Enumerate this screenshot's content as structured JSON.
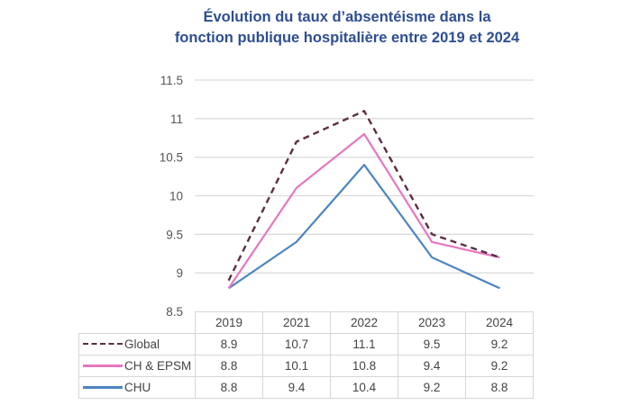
{
  "title_line1": "Évolution du taux d’absentéisme dans la",
  "title_line2": "fonction publique hospitalière entre 2019 et 2024",
  "chart_data": {
    "type": "line",
    "title": "Évolution du taux d’absentéisme dans la fonction publique hospitalière entre 2019 et 2024",
    "xlabel": "",
    "ylabel": "",
    "categories": [
      "2019",
      "2021",
      "2022",
      "2023",
      "2024"
    ],
    "ylim": [
      8.5,
      11.5
    ],
    "yticks": [
      "11.5",
      "11",
      "10.5",
      "10",
      "9.5",
      "9",
      "8.5"
    ],
    "ytick_values": [
      11.5,
      11,
      10.5,
      10,
      9.5,
      9,
      8.5
    ],
    "grid": true,
    "legend_placement": "bottom (data table)",
    "series": [
      {
        "name": "Global",
        "values": [
          8.9,
          10.7,
          11.1,
          9.5,
          9.2
        ],
        "color": "#5a2f45",
        "style": "dashed",
        "display": [
          "8.9",
          "10.7",
          "11.1",
          "9.5",
          "9.2"
        ]
      },
      {
        "name": "CH & EPSM",
        "values": [
          8.8,
          10.1,
          10.8,
          9.4,
          9.2
        ],
        "color": "#e677c0",
        "style": "solid",
        "display": [
          "8.8",
          "10.1",
          "10.8",
          "9.4",
          "9.2"
        ]
      },
      {
        "name": "CHU",
        "values": [
          8.8,
          9.4,
          10.4,
          9.2,
          8.8
        ],
        "color": "#4c86c2",
        "style": "solid",
        "display": [
          "8.8",
          "9.4",
          "10.4",
          "9.2",
          "8.8"
        ]
      }
    ]
  }
}
